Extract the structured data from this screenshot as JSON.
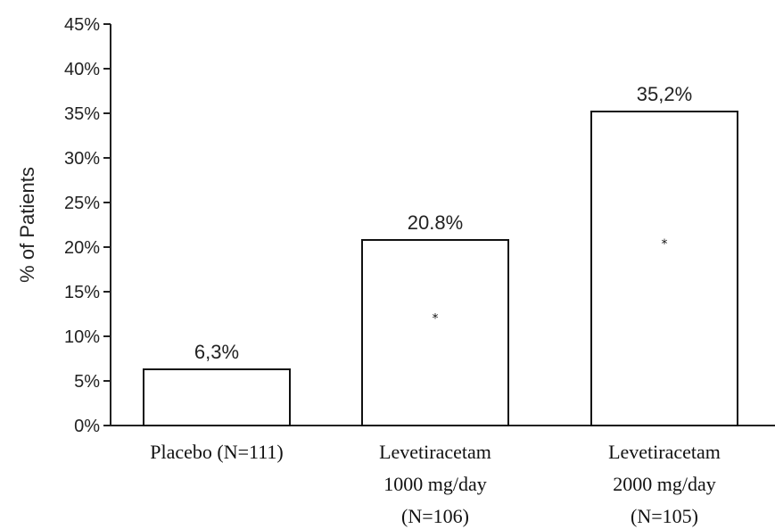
{
  "chart_data": {
    "type": "bar",
    "categories": [
      [
        "Placebo (N=111)"
      ],
      [
        "Levetiracetam",
        "1000 mg/day",
        "(N=106)"
      ],
      [
        "Levetiracetam",
        "2000 mg/day",
        "(N=105)"
      ]
    ],
    "values": [
      6.3,
      20.8,
      35.2
    ],
    "data_labels": [
      "6,3%",
      "20.8%",
      "35,2%"
    ],
    "significance_markers": [
      "",
      "*",
      "*"
    ],
    "title": "",
    "xlabel": "",
    "ylabel": "% of Patients",
    "ylim": [
      0,
      45
    ],
    "yticks": [
      0,
      5,
      10,
      15,
      20,
      25,
      30,
      35,
      40,
      45
    ],
    "ytick_labels": [
      "0%",
      "5%",
      "10%",
      "15%",
      "20%",
      "25%",
      "30%",
      "35%",
      "40%",
      "45%"
    ],
    "grid": false,
    "legend": "none",
    "bar_fill": "#ffffff",
    "bar_stroke": "#111111"
  }
}
